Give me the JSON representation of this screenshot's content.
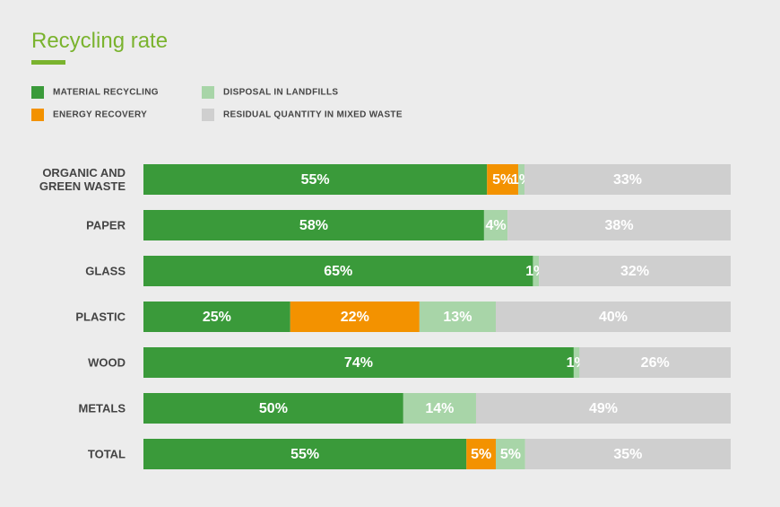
{
  "chart_data": {
    "type": "stacked-bar-horizontal",
    "title": "Recycling rate",
    "categories": [
      "ORGANIC AND GREEN WASTE",
      "PAPER",
      "GLASS",
      "PLASTIC",
      "WOOD",
      "METALS",
      "TOTAL"
    ],
    "series": [
      {
        "name": "MATERIAL RECYCLING",
        "color": "#3a9a3a",
        "values": [
          55,
          58,
          65,
          25,
          74,
          50,
          55
        ],
        "value_labels": [
          "55%",
          "58%",
          "65%",
          "25%",
          "74%",
          "50%",
          "55%"
        ]
      },
      {
        "name": "ENERGY RECOVERY",
        "color": "#f39200",
        "values": [
          5,
          null,
          null,
          22,
          null,
          null,
          5
        ],
        "value_labels": [
          "5%",
          null,
          null,
          "22%",
          null,
          null,
          "5%"
        ]
      },
      {
        "name": "DISPOSAL IN LANDFILLS",
        "color": "#a8d5a8",
        "values": [
          1,
          4,
          1,
          13,
          1,
          14,
          5
        ],
        "value_labels": [
          "1%",
          "4%",
          "1%",
          "13%",
          "1%",
          "14%",
          "5%"
        ]
      },
      {
        "name": "RESIDUAL QUANTITY IN MIXED WASTE",
        "color": "#cfcfcf",
        "values": [
          33,
          38,
          32,
          40,
          26,
          49,
          35
        ],
        "value_labels": [
          "33%",
          "38%",
          "32%",
          "40%",
          "26%",
          "49%",
          "35%"
        ]
      }
    ]
  }
}
